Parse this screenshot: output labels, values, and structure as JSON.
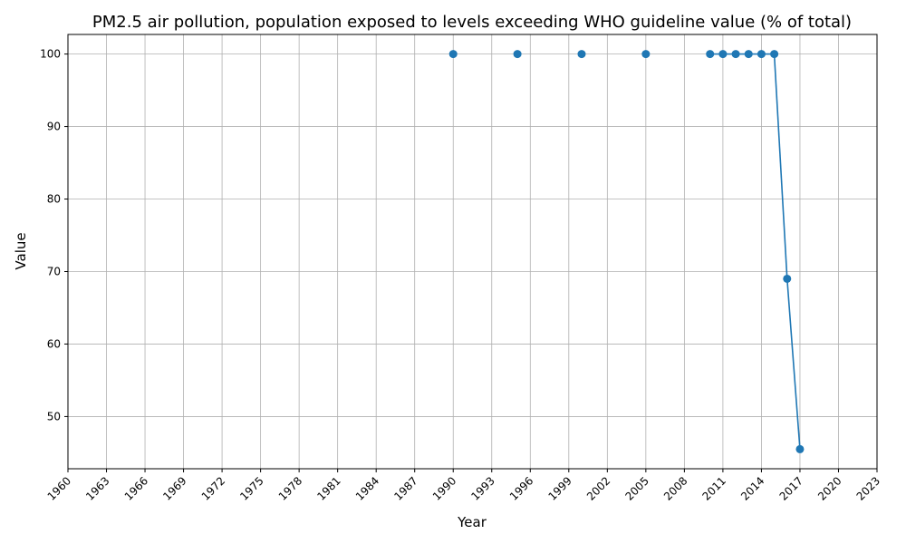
{
  "chart_data": {
    "type": "line",
    "title": "PM2.5 air pollution, population exposed to levels exceeding WHO guideline value (% of total)",
    "xlabel": "Year",
    "ylabel": "Value",
    "xlim": [
      1960,
      2023
    ],
    "ylim": [
      42.8,
      102.7
    ],
    "xticks": [
      1960,
      1963,
      1966,
      1969,
      1972,
      1975,
      1978,
      1981,
      1984,
      1987,
      1990,
      1993,
      1996,
      1999,
      2002,
      2005,
      2008,
      2011,
      2014,
      2017,
      2020,
      2023
    ],
    "yticks": [
      50,
      60,
      70,
      80,
      90,
      100
    ],
    "grid": true,
    "color": "#1f77b4",
    "series": [
      {
        "points": [
          {
            "x": 1990,
            "y": 100
          },
          {
            "x": 1995,
            "y": 100
          },
          {
            "x": 2000,
            "y": 100
          },
          {
            "x": 2005,
            "y": 100
          },
          {
            "x": 2010,
            "y": 100
          },
          {
            "x": 2011,
            "y": 100
          },
          {
            "x": 2012,
            "y": 100
          },
          {
            "x": 2013,
            "y": 100
          },
          {
            "x": 2014,
            "y": 100
          },
          {
            "x": 2015,
            "y": 100
          },
          {
            "x": 2016,
            "y": 69
          },
          {
            "x": 2017,
            "y": 45.5
          }
        ]
      }
    ]
  }
}
